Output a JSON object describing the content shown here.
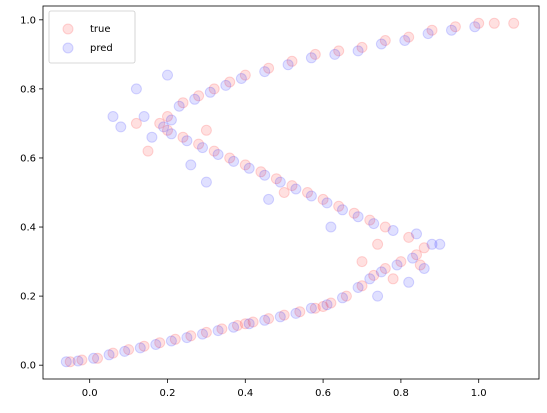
{
  "chart_data": {
    "type": "scatter",
    "title": "",
    "xlabel": "",
    "ylabel": "",
    "xlim": [
      -0.12,
      1.155
    ],
    "ylim": [
      -0.04,
      1.04
    ],
    "xticks": [
      0.0,
      0.2,
      0.4,
      0.6,
      0.8,
      1.0
    ],
    "xtick_labels": [
      "0.0",
      "0.2",
      "0.4",
      "0.6",
      "0.8",
      "1.0"
    ],
    "yticks": [
      0.0,
      0.2,
      0.4,
      0.6,
      0.8,
      1.0
    ],
    "ytick_labels": [
      "0.0",
      "0.2",
      "0.4",
      "0.6",
      "0.8",
      "1.0"
    ],
    "grid": false,
    "legend_position": "upper-left",
    "marker_alpha": 0.12,
    "series": [
      {
        "name": "true",
        "color": "#ff0000",
        "points": [
          [
            -0.05,
            0.01
          ],
          [
            -0.02,
            0.015
          ],
          [
            0.02,
            0.02
          ],
          [
            0.06,
            0.035
          ],
          [
            0.1,
            0.045
          ],
          [
            0.14,
            0.055
          ],
          [
            0.18,
            0.065
          ],
          [
            0.22,
            0.075
          ],
          [
            0.26,
            0.085
          ],
          [
            0.3,
            0.095
          ],
          [
            0.34,
            0.105
          ],
          [
            0.38,
            0.115
          ],
          [
            0.42,
            0.125
          ],
          [
            0.46,
            0.135
          ],
          [
            0.5,
            0.145
          ],
          [
            0.54,
            0.155
          ],
          [
            0.58,
            0.165
          ],
          [
            0.62,
            0.18
          ],
          [
            0.66,
            0.2
          ],
          [
            0.7,
            0.23
          ],
          [
            0.73,
            0.26
          ],
          [
            0.76,
            0.28
          ],
          [
            0.8,
            0.3
          ],
          [
            0.84,
            0.32
          ],
          [
            0.86,
            0.34
          ],
          [
            0.82,
            0.37
          ],
          [
            0.76,
            0.4
          ],
          [
            0.72,
            0.42
          ],
          [
            0.68,
            0.44
          ],
          [
            0.64,
            0.46
          ],
          [
            0.6,
            0.48
          ],
          [
            0.56,
            0.5
          ],
          [
            0.52,
            0.52
          ],
          [
            0.48,
            0.54
          ],
          [
            0.44,
            0.56
          ],
          [
            0.4,
            0.58
          ],
          [
            0.36,
            0.6
          ],
          [
            0.32,
            0.62
          ],
          [
            0.28,
            0.64
          ],
          [
            0.24,
            0.66
          ],
          [
            0.2,
            0.68
          ],
          [
            0.18,
            0.7
          ],
          [
            0.2,
            0.72
          ],
          [
            0.24,
            0.76
          ],
          [
            0.28,
            0.78
          ],
          [
            0.32,
            0.8
          ],
          [
            0.36,
            0.82
          ],
          [
            0.4,
            0.84
          ],
          [
            0.46,
            0.86
          ],
          [
            0.52,
            0.88
          ],
          [
            0.58,
            0.9
          ],
          [
            0.64,
            0.91
          ],
          [
            0.7,
            0.92
          ],
          [
            0.76,
            0.94
          ],
          [
            0.82,
            0.95
          ],
          [
            0.88,
            0.97
          ],
          [
            0.94,
            0.98
          ],
          [
            1.0,
            0.99
          ],
          [
            1.04,
            0.99
          ],
          [
            1.09,
            0.99
          ],
          [
            0.15,
            0.62
          ],
          [
            0.12,
            0.7
          ],
          [
            0.3,
            0.68
          ],
          [
            0.5,
            0.5
          ],
          [
            0.74,
            0.35
          ],
          [
            0.78,
            0.25
          ],
          [
            0.7,
            0.3
          ],
          [
            0.85,
            0.29
          ],
          [
            0.4,
            0.12
          ],
          [
            0.6,
            0.17
          ]
        ]
      },
      {
        "name": "pred",
        "color": "#0000ff",
        "points": [
          [
            -0.06,
            0.01
          ],
          [
            -0.03,
            0.012
          ],
          [
            0.01,
            0.02
          ],
          [
            0.05,
            0.03
          ],
          [
            0.09,
            0.04
          ],
          [
            0.13,
            0.05
          ],
          [
            0.17,
            0.06
          ],
          [
            0.21,
            0.07
          ],
          [
            0.25,
            0.08
          ],
          [
            0.29,
            0.09
          ],
          [
            0.33,
            0.1
          ],
          [
            0.37,
            0.11
          ],
          [
            0.41,
            0.12
          ],
          [
            0.45,
            0.13
          ],
          [
            0.49,
            0.14
          ],
          [
            0.53,
            0.15
          ],
          [
            0.57,
            0.165
          ],
          [
            0.61,
            0.175
          ],
          [
            0.65,
            0.195
          ],
          [
            0.69,
            0.225
          ],
          [
            0.72,
            0.25
          ],
          [
            0.75,
            0.27
          ],
          [
            0.79,
            0.29
          ],
          [
            0.83,
            0.31
          ],
          [
            0.88,
            0.35
          ],
          [
            0.84,
            0.38
          ],
          [
            0.78,
            0.39
          ],
          [
            0.73,
            0.41
          ],
          [
            0.69,
            0.43
          ],
          [
            0.65,
            0.45
          ],
          [
            0.61,
            0.47
          ],
          [
            0.57,
            0.49
          ],
          [
            0.53,
            0.51
          ],
          [
            0.49,
            0.53
          ],
          [
            0.45,
            0.55
          ],
          [
            0.41,
            0.57
          ],
          [
            0.37,
            0.59
          ],
          [
            0.33,
            0.61
          ],
          [
            0.29,
            0.63
          ],
          [
            0.25,
            0.65
          ],
          [
            0.21,
            0.67
          ],
          [
            0.19,
            0.69
          ],
          [
            0.21,
            0.71
          ],
          [
            0.23,
            0.75
          ],
          [
            0.27,
            0.77
          ],
          [
            0.31,
            0.79
          ],
          [
            0.35,
            0.81
          ],
          [
            0.39,
            0.83
          ],
          [
            0.45,
            0.85
          ],
          [
            0.51,
            0.87
          ],
          [
            0.57,
            0.89
          ],
          [
            0.63,
            0.9
          ],
          [
            0.69,
            0.91
          ],
          [
            0.75,
            0.93
          ],
          [
            0.81,
            0.94
          ],
          [
            0.87,
            0.96
          ],
          [
            0.93,
            0.97
          ],
          [
            0.99,
            0.98
          ],
          [
            0.06,
            0.72
          ],
          [
            0.08,
            0.69
          ],
          [
            0.12,
            0.8
          ],
          [
            0.14,
            0.72
          ],
          [
            0.16,
            0.66
          ],
          [
            0.2,
            0.84
          ],
          [
            0.26,
            0.58
          ],
          [
            0.3,
            0.53
          ],
          [
            0.46,
            0.48
          ],
          [
            0.62,
            0.4
          ],
          [
            0.74,
            0.2
          ],
          [
            0.82,
            0.24
          ],
          [
            0.86,
            0.28
          ],
          [
            0.9,
            0.35
          ]
        ]
      }
    ]
  }
}
